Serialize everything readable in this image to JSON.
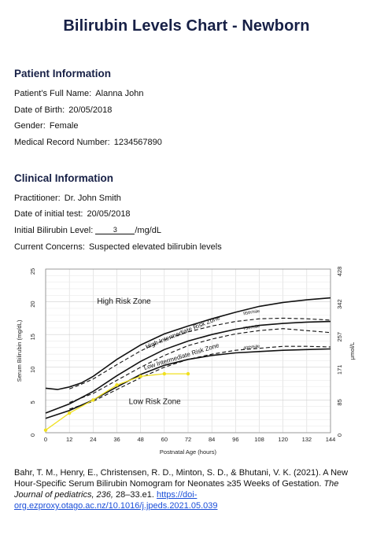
{
  "title": "Bilirubin Levels Chart - Newborn",
  "patient": {
    "heading": "Patient Information",
    "name_label": "Patient’s Full Name:",
    "name": "Alanna John",
    "dob_label": "Date of Birth:",
    "dob": "20/05/2018",
    "gender_label": "Gender:",
    "gender": "Female",
    "mrn_label": "Medical Record Number:",
    "mrn": "1234567890"
  },
  "clinical": {
    "heading": "Clinical Information",
    "practitioner_label": "Practitioner:",
    "practitioner": "Dr. John Smith",
    "initial_test_label": "Date of initial test:",
    "initial_test": "20/05/2018",
    "bilirubin_label": "Initial Bilirubin Level:",
    "bilirubin_value": "3",
    "bilirubin_unit": "/mg/dL",
    "concerns_label": "Current Concerns:",
    "concerns": "Suspected elevated bilirubin levels"
  },
  "chart_data": {
    "type": "line",
    "xlabel": "Postnatal Age (hours)",
    "ylabel": "Serum Bilirubin (mg/dL)",
    "y2label": "μmol/L",
    "xlim": [
      0,
      144
    ],
    "ylim": [
      0,
      25
    ],
    "x_ticks": [
      0,
      12,
      24,
      36,
      48,
      60,
      72,
      84,
      96,
      108,
      120,
      132,
      144
    ],
    "y_ticks": [
      0,
      5,
      10,
      15,
      20,
      25
    ],
    "y2_ticks": [
      "0",
      "85",
      "171",
      "257",
      "342",
      "428"
    ],
    "grid": true,
    "zone_labels": [
      "High Risk Zone",
      "High Intermediate Risk Zone",
      "Low Intermediate Risk Zone",
      "Low Risk Zone"
    ],
    "series": [
      {
        "name": "95th%ile",
        "style": "solid",
        "x": [
          0,
          6,
          12,
          18,
          24,
          36,
          48,
          60,
          72,
          84,
          96,
          108,
          120,
          132,
          144
        ],
        "y": [
          6.8,
          6.6,
          7.0,
          7.6,
          8.6,
          11.2,
          13.4,
          15.1,
          16.3,
          17.4,
          18.4,
          19.3,
          19.9,
          20.3,
          20.6
        ]
      },
      {
        "name": "95th%ile-dashed",
        "style": "dashed",
        "x": [
          12,
          18,
          24,
          36,
          48,
          60,
          72,
          84,
          96,
          108,
          120,
          132,
          144
        ],
        "y": [
          6.7,
          7.4,
          8.2,
          10.4,
          12.5,
          14.2,
          15.4,
          16.3,
          17.0,
          17.4,
          17.5,
          17.4,
          17.2
        ]
      },
      {
        "name": "75th%ile",
        "style": "solid",
        "x": [
          0,
          12,
          24,
          36,
          48,
          60,
          72,
          84,
          96,
          108,
          120,
          132,
          144
        ],
        "y": [
          3.0,
          4.4,
          6.3,
          8.7,
          10.9,
          12.7,
          14.0,
          15.0,
          15.8,
          16.4,
          16.7,
          16.9,
          17.0
        ]
      },
      {
        "name": "75th%ile-dashed",
        "style": "dashed",
        "x": [
          12,
          24,
          36,
          48,
          60,
          72,
          84,
          96,
          108,
          120,
          132,
          144
        ],
        "y": [
          4.6,
          6.0,
          8.0,
          10.0,
          11.8,
          13.3,
          14.3,
          15.1,
          15.6,
          15.9,
          15.6,
          15.3
        ]
      },
      {
        "name": "40th%ile",
        "style": "solid",
        "x": [
          0,
          12,
          24,
          36,
          48,
          60,
          72,
          84,
          96,
          108,
          120,
          132,
          144
        ],
        "y": [
          2.2,
          3.4,
          5.0,
          7.0,
          8.9,
          10.3,
          11.2,
          11.8,
          12.2,
          12.4,
          12.6,
          12.7,
          12.8
        ]
      },
      {
        "name": "40th%ile-dashed",
        "style": "dashed",
        "x": [
          12,
          24,
          36,
          48,
          60,
          72,
          84,
          96,
          108,
          120,
          132,
          144
        ],
        "y": [
          3.6,
          4.8,
          6.6,
          8.4,
          10.0,
          11.2,
          12.0,
          12.6,
          12.9,
          13.2,
          13.2,
          13.1
        ]
      },
      {
        "name": "patient",
        "style": "marker",
        "color": "#f0e020",
        "x": [
          0,
          12,
          24,
          36,
          48,
          60,
          72
        ],
        "y": [
          0.4,
          3.0,
          5.0,
          7.3,
          8.6,
          9.0,
          9.0
        ]
      }
    ],
    "percentile_labels": [
      "95th%ile",
      "75th%ile",
      "40th%ile"
    ]
  },
  "citation": {
    "text": "Bahr, T. M., Henry, E., Christensen, R. D., Minton, S. D., & Bhutani, V. K. (2021). A New Hour-Specific Serum Bilirubin Nomogram for Neonates ≥35 Weeks of Gestation. ",
    "journal": "The Journal of pediatrics, 236,",
    "pages": " 28–33.e1. ",
    "link": "https://doi-org.ezproxy.otago.ac.nz/10.1016/j.jpeds.2021.05.039"
  }
}
